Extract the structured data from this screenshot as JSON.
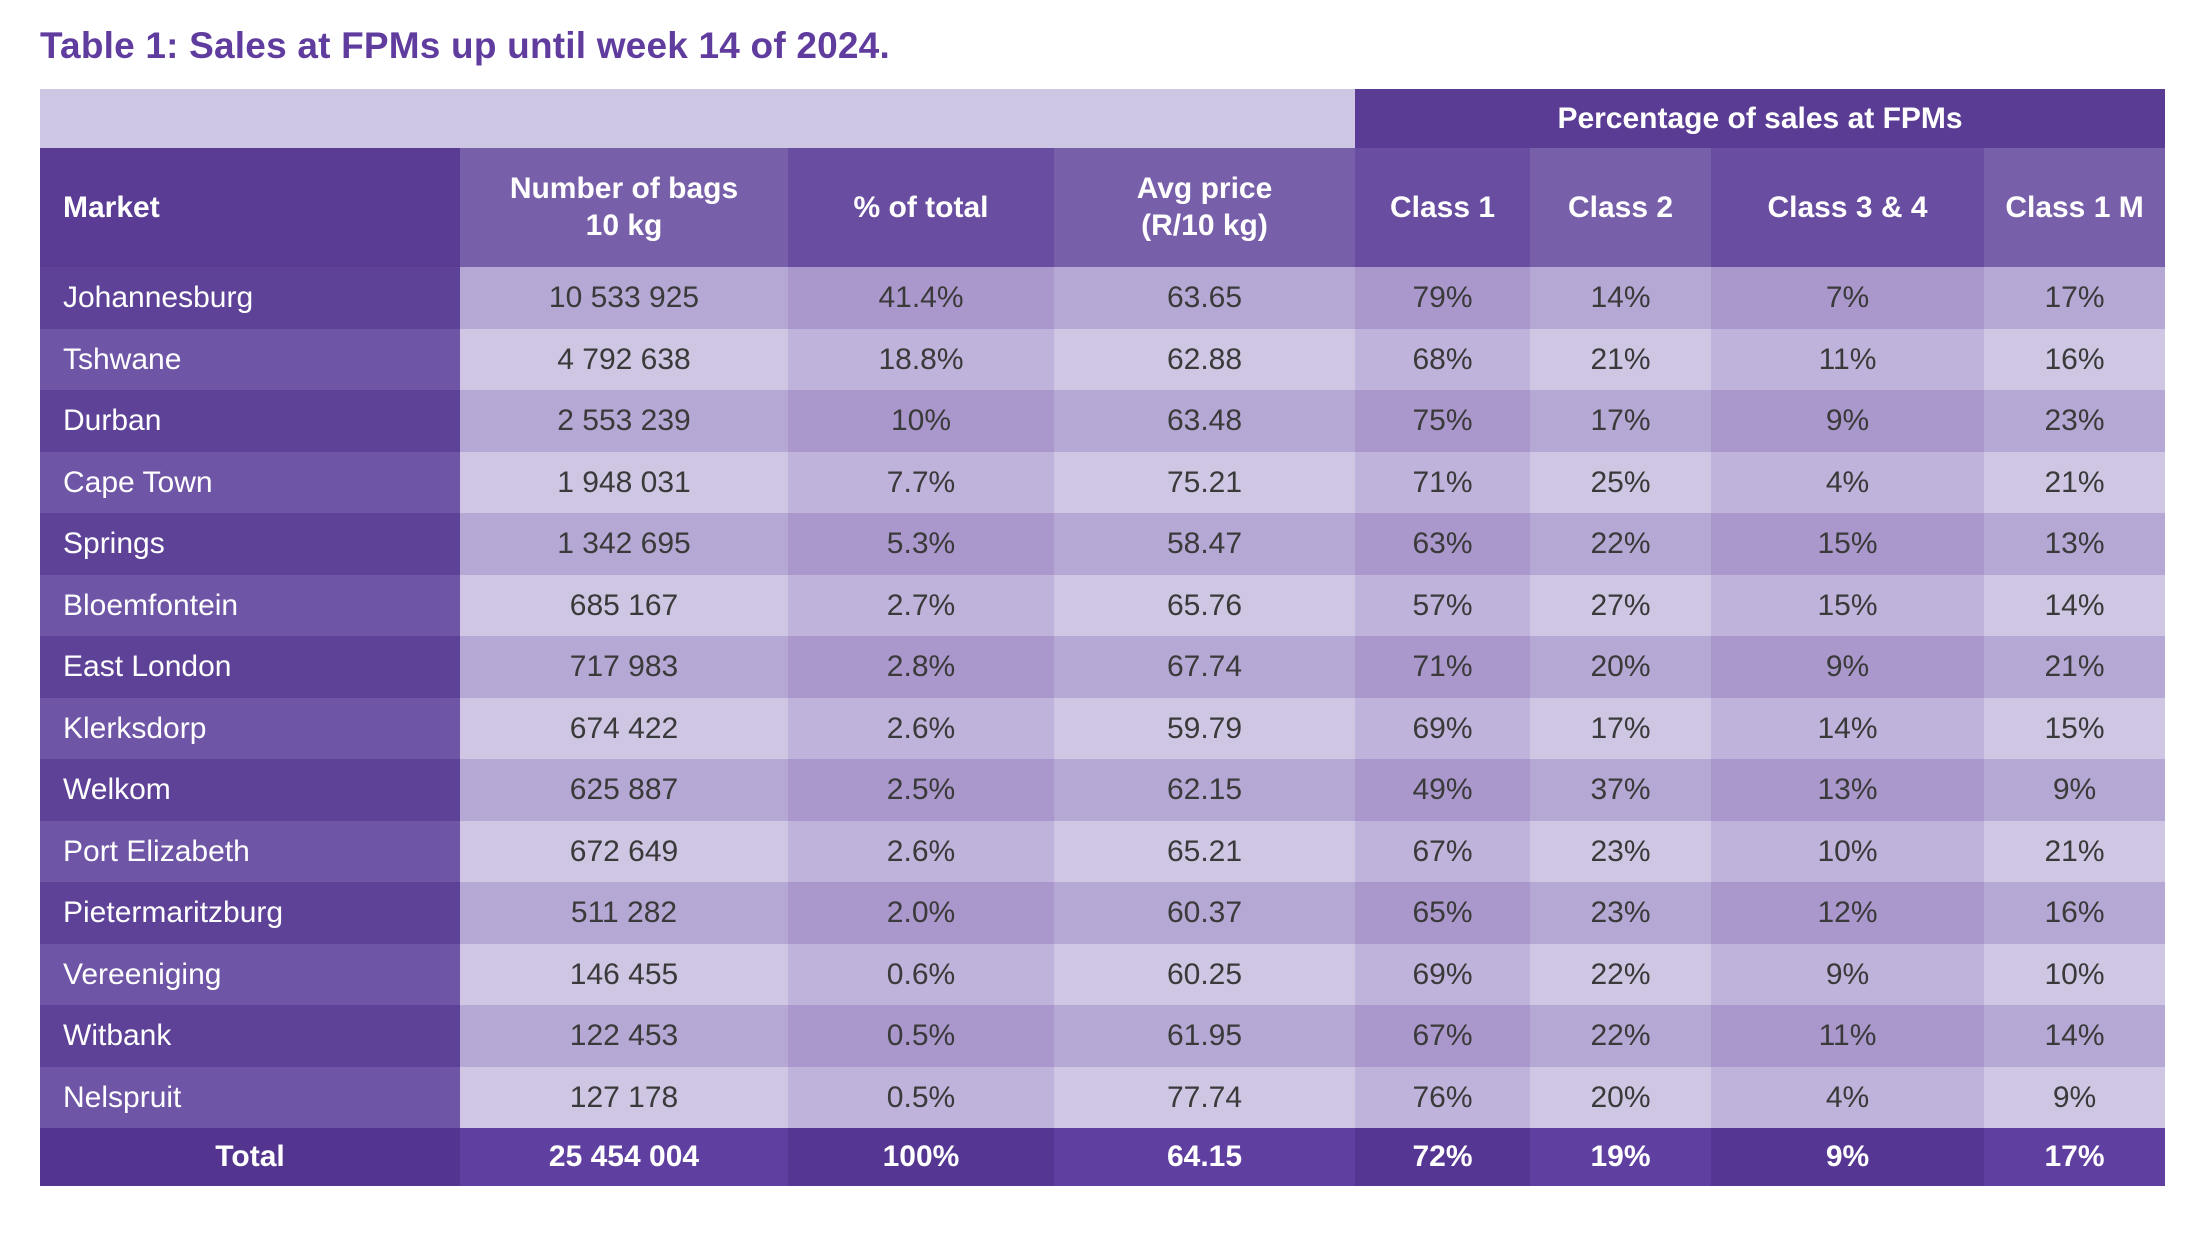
{
  "title": "Table 1: Sales at FPMs up until week 14 of 2024.",
  "group_header": "Percentage of sales at FPMs",
  "columns": [
    {
      "line1": "Market",
      "line2": ""
    },
    {
      "line1": "Number of bags",
      "line2": "10 kg"
    },
    {
      "line1": "% of total",
      "line2": ""
    },
    {
      "line1": "Avg price",
      "line2": "(R/10 kg)"
    },
    {
      "line1": "Class 1",
      "line2": ""
    },
    {
      "line1": "Class 2",
      "line2": ""
    },
    {
      "line1": "Class 3 & 4",
      "line2": ""
    },
    {
      "line1": "Class 1 M",
      "line2": ""
    }
  ],
  "rows": [
    {
      "cells": [
        "Johannesburg",
        "10 533 925",
        "41.4%",
        "63.65",
        "79%",
        "14%",
        "7%",
        "17%"
      ]
    },
    {
      "cells": [
        "Tshwane",
        "4 792 638",
        "18.8%",
        "62.88",
        "68%",
        "21%",
        "11%",
        "16%"
      ]
    },
    {
      "cells": [
        "Durban",
        "2 553 239",
        "10%",
        "63.48",
        "75%",
        "17%",
        "9%",
        "23%"
      ]
    },
    {
      "cells": [
        "Cape Town",
        "1 948 031",
        "7.7%",
        "75.21",
        "71%",
        "25%",
        "4%",
        "21%"
      ]
    },
    {
      "cells": [
        "Springs",
        "1 342 695",
        "5.3%",
        "58.47",
        "63%",
        "22%",
        "15%",
        "13%"
      ]
    },
    {
      "cells": [
        "Bloemfontein",
        "685 167",
        "2.7%",
        "65.76",
        "57%",
        "27%",
        "15%",
        "14%"
      ]
    },
    {
      "cells": [
        "East London",
        "717 983",
        "2.8%",
        "67.74",
        "71%",
        "20%",
        "9%",
        "21%"
      ]
    },
    {
      "cells": [
        "Klerksdorp",
        "674 422",
        "2.6%",
        "59.79",
        "69%",
        "17%",
        "14%",
        "15%"
      ]
    },
    {
      "cells": [
        "Welkom",
        "625 887",
        "2.5%",
        "62.15",
        "49%",
        "37%",
        "13%",
        "9%"
      ]
    },
    {
      "cells": [
        "Port Elizabeth",
        "672 649",
        "2.6%",
        "65.21",
        "67%",
        "23%",
        "10%",
        "21%"
      ]
    },
    {
      "cells": [
        "Pietermaritzburg",
        "511 282",
        "2.0%",
        "60.37",
        "65%",
        "23%",
        "12%",
        "16%"
      ]
    },
    {
      "cells": [
        "Vereeniging",
        "146 455",
        "0.6%",
        "60.25",
        "69%",
        "22%",
        "9%",
        "10%"
      ]
    },
    {
      "cells": [
        "Witbank",
        "122 453",
        "0.5%",
        "61.95",
        "67%",
        "22%",
        "11%",
        "14%"
      ]
    },
    {
      "cells": [
        "Nelspruit",
        "127 178",
        "0.5%",
        "77.74",
        "76%",
        "20%",
        "4%",
        "9%"
      ]
    }
  ],
  "total_row": {
    "cells": [
      "Total",
      "25 454 004",
      "100%",
      "64.15",
      "72%",
      "19%",
      "9%",
      "17%"
    ]
  },
  "colors": {
    "title_purple": "#5f3c9e",
    "band_lavender": "#cdc7e4",
    "band_dark_purple": "#5a3c94",
    "header_dark_col": "#684da0",
    "header_light_col": "#785fa9",
    "market_col_dark_row": "#5e4298",
    "market_col_light_row": "#6e55a6",
    "cell_dark_row_dark_col": "#aa98cd",
    "cell_dark_row_light_col": "#b5a8d4",
    "cell_light_row_dark_col": "#bfb2db",
    "cell_light_row_light_col": "#cfc6e4",
    "total_row_purple": "#553692",
    "data_text": "#3a3a3a",
    "white_text": "#ffffff"
  }
}
